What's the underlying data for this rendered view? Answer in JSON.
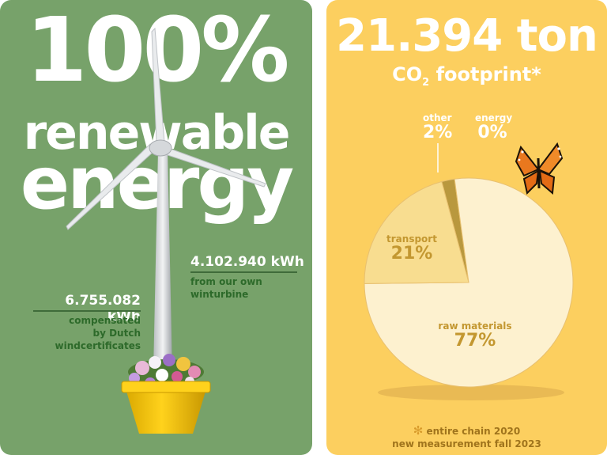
{
  "left": {
    "headline_line1": "100%",
    "headline_line2": "renewable",
    "headline_line3": "energy",
    "turbine": {
      "value": "4.102.940 kWh",
      "desc_line1": "from our own",
      "desc_line2": "winturbine"
    },
    "certificates": {
      "value": "6.755.082 kWh",
      "desc_line1": "compensated",
      "desc_line2": "by Dutch",
      "desc_line3": "windcertificates"
    },
    "icons": [
      "wind-turbine-icon",
      "flower-pot-icon"
    ]
  },
  "right": {
    "total": "21.394 ton",
    "subtitle_prefix": "CO",
    "subtitle_sub": "2",
    "subtitle_suffix": " footprint*",
    "footnote_mark": "✻",
    "footnote_line1": "entire chain 2020",
    "footnote_line2": "new measurement fall 2023",
    "icons": [
      "butterfly-icon"
    ]
  },
  "chart_data": {
    "type": "pie",
    "slices": [
      {
        "label": "raw materials",
        "value": 77,
        "display": "77%",
        "color": "#fdf1cf"
      },
      {
        "label": "transport",
        "value": 21,
        "display": "21%",
        "color": "#f8dd90"
      },
      {
        "label": "other",
        "value": 2,
        "display": "2%",
        "color": "#b9983e"
      },
      {
        "label": "energy",
        "value": 0,
        "display": "0%",
        "color": "#fccf5f"
      }
    ]
  }
}
